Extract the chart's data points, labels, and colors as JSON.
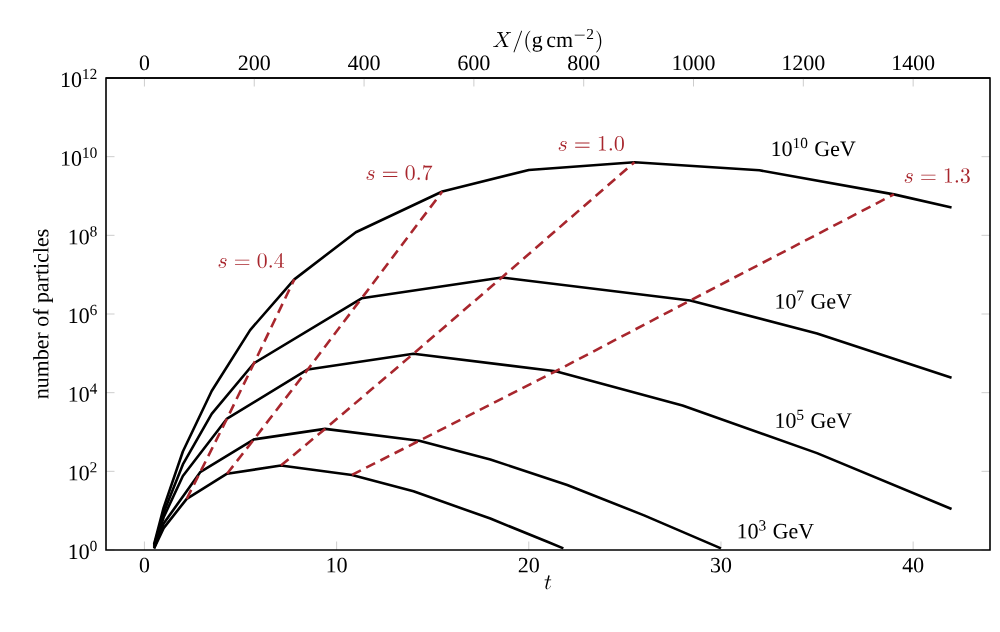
{
  "chart_data": {
    "type": "line",
    "xlabel": "t",
    "x2label": "X/(\\mathrm{g\\,cm^{-2}})",
    "ylabel": "number of particles",
    "log": "y",
    "xlim": [
      -2,
      44
    ],
    "xticks": [
      0,
      10,
      20,
      30,
      40
    ],
    "x2lim": [
      -70,
      1540
    ],
    "x2ticks": [
      0,
      200,
      400,
      600,
      800,
      1000,
      1200,
      1400
    ],
    "ylim": [
      1,
      1000000000000.0
    ],
    "yticks": [
      {
        "value": 1,
        "label": "10$^{0}$"
      },
      {
        "value": 100,
        "label": "10$^{2}$"
      },
      {
        "value": 10000,
        "label": "10$^{4}$"
      },
      {
        "value": 1000000.0,
        "label": "10$^{6}$"
      },
      {
        "value": 100000000.0,
        "label": "10$^{8}$"
      },
      {
        "value": 10000000000.0,
        "label": "10$^{10}$"
      },
      {
        "value": 1000000000000.0,
        "label": "10$^{12}$"
      }
    ],
    "series": [
      {
        "name": "10$^{10}$ GeV",
        "color": "#000000",
        "line_style": "solid",
        "x": [
          0.5,
          1,
          2,
          3.5,
          5.5,
          7.8,
          11,
          15.5,
          20,
          25.5,
          32,
          39,
          42
        ],
        "values": [
          1.4,
          12,
          320,
          11000,
          390000,
          7600000.0,
          120000000.0,
          1300000000.0,
          4600000000.0,
          7200000000.0,
          4500000000.0,
          1100000000.0,
          510000000.0
        ]
      },
      {
        "name": "10$^{7}$ GeV",
        "color": "#000000",
        "line_style": "solid",
        "x": [
          0.5,
          1,
          2,
          3.5,
          5.7,
          11.3,
          18.6,
          28.4,
          35,
          42
        ],
        "values": [
          1.3,
          8.9,
          150,
          2900,
          56000,
          2500000.0,
          8500000.0,
          2200000.0,
          320000,
          24000
        ]
      },
      {
        "name": "10$^{5}$ GeV",
        "color": "#000000",
        "line_style": "solid",
        "x": [
          0.5,
          1,
          2,
          4.3,
          8.5,
          14,
          21.4,
          28,
          35,
          42
        ],
        "values": [
          1.2,
          6.8,
          76,
          2200,
          39000,
          98000,
          35000,
          4700,
          290,
          11
        ]
      },
      {
        "name": "10$^{3}$ GeV",
        "color": "#000000",
        "line_style": "solid",
        "x": [
          0.5,
          1,
          2.9,
          5.7,
          9.4,
          14.3,
          18,
          22,
          26,
          30
        ],
        "values": [
          1.1,
          4.7,
          95,
          650,
          1200,
          600,
          200,
          45,
          7.6,
          1.1
        ]
      },
      {
        "color": "#000000",
        "line_style": "solid",
        "x": [
          0.5,
          1,
          2.2,
          4.3,
          7.1,
          10.8,
          14,
          18,
          21,
          21.8
        ],
        "values": [
          1.1,
          3.6,
          20,
          87,
          140,
          81,
          31,
          6.3,
          1.6,
          1.1
        ]
      },
      {
        "name": "s = 0.4",
        "color": "#a8262d",
        "line_style": "dashed",
        "x": [
          2.2,
          2.9,
          4.3,
          5.7,
          7.8
        ],
        "values": [
          20,
          95,
          2200,
          56000,
          7600000.0
        ]
      },
      {
        "name": "s = 0.7",
        "color": "#a8262d",
        "line_style": "dashed",
        "x": [
          4.3,
          5.7,
          8.5,
          11.3,
          15.5
        ],
        "values": [
          87,
          650,
          39000,
          2500000.0,
          1300000000.0
        ]
      },
      {
        "name": "s = 1.0",
        "color": "#a8262d",
        "line_style": "dashed",
        "x": [
          7.1,
          9.4,
          14,
          18.6,
          25.5
        ],
        "values": [
          140,
          1200,
          98000,
          8500000.0,
          7200000000.0
        ]
      },
      {
        "name": "s = 1.3",
        "color": "#a8262d",
        "line_style": "dashed",
        "x": [
          10.8,
          14.3,
          21.4,
          28.4,
          39
        ],
        "values": [
          81,
          600,
          35000,
          2200000.0,
          1100000000.0
        ]
      }
    ]
  }
}
